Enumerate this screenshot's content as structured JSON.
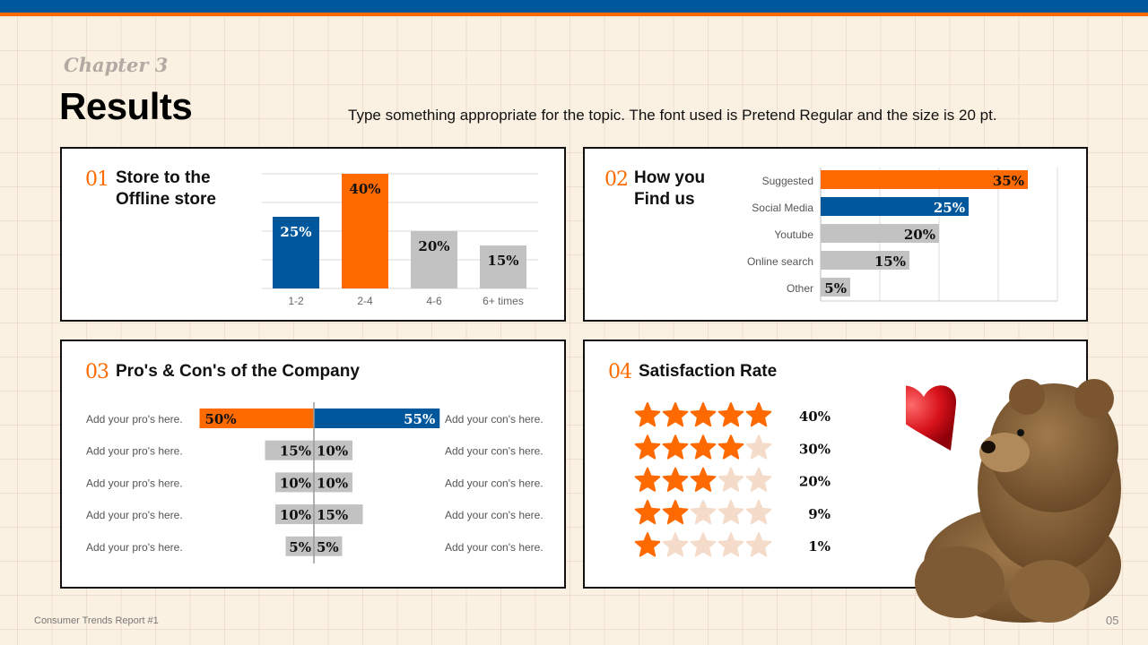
{
  "header": {
    "chapter": "Chapter 3",
    "title": "Results",
    "subtitle": "Type something appropriate for the topic. The font used is Pretend Regular and the size is 20 pt."
  },
  "colors": {
    "blue": "#00579c",
    "orange": "#ff6a00",
    "gray": "#c3c2c3",
    "star_empty": "#f5dcca"
  },
  "panels": [
    {
      "num": "01",
      "title_lines": [
        "Store to the",
        "Offline store"
      ]
    },
    {
      "num": "02",
      "title_lines": [
        "How you",
        "Find us"
      ]
    },
    {
      "num": "03",
      "title": "Pro's & Con's of the Company"
    },
    {
      "num": "04",
      "title": "Satisfaction Rate"
    }
  ],
  "chart_data": [
    {
      "type": "bar",
      "categories": [
        "1-2",
        "2-4",
        "4-6",
        "6+ times"
      ],
      "values": [
        25,
        40,
        20,
        15
      ],
      "labels": [
        "25%",
        "40%",
        "20%",
        "15%"
      ],
      "colors": [
        "#00579c",
        "#ff6a00",
        "#c3c2c3",
        "#c3c2c3"
      ],
      "ylim": [
        0,
        40
      ],
      "grid": true
    },
    {
      "type": "bar",
      "orientation": "horizontal",
      "categories": [
        "Suggested",
        "Social Media",
        "Youtube",
        "Online search",
        "Other"
      ],
      "values": [
        35,
        25,
        20,
        15,
        5
      ],
      "labels": [
        "35%",
        "25%",
        "20%",
        "15%",
        "5%"
      ],
      "colors": [
        "#ff6a00",
        "#00579c",
        "#c3c2c3",
        "#c3c2c3",
        "#c3c2c3"
      ],
      "xlim": [
        0,
        40
      ],
      "grid": true
    },
    {
      "type": "bar",
      "orientation": "diverging",
      "rows": [
        {
          "pro_label": "Add your pro's here.",
          "pro": 50,
          "con_label": "Add your con's here.",
          "con": 55
        },
        {
          "pro_label": "Add your pro's here.",
          "pro": 15,
          "con_label": "Add your con's here.",
          "con": 10
        },
        {
          "pro_label": "Add your pro's here.",
          "pro": 10,
          "con_label": "Add your con's here.",
          "con": 10
        },
        {
          "pro_label": "Add your pro's here.",
          "pro": 10,
          "con_label": "Add your con's here.",
          "con": 15
        },
        {
          "pro_label": "Add your pro's here.",
          "pro": 5,
          "con_label": "Add your con's here.",
          "con": 5
        }
      ]
    },
    {
      "type": "table",
      "rows": [
        {
          "stars": 5,
          "percent": "40%"
        },
        {
          "stars": 4,
          "percent": "30%"
        },
        {
          "stars": 3,
          "percent": "20%"
        },
        {
          "stars": 2,
          "percent": "9%"
        },
        {
          "stars": 1,
          "percent": "1%"
        }
      ],
      "max_stars": 5
    }
  ],
  "footer": {
    "report": "Consumer Trends Report #1",
    "page": "05"
  }
}
